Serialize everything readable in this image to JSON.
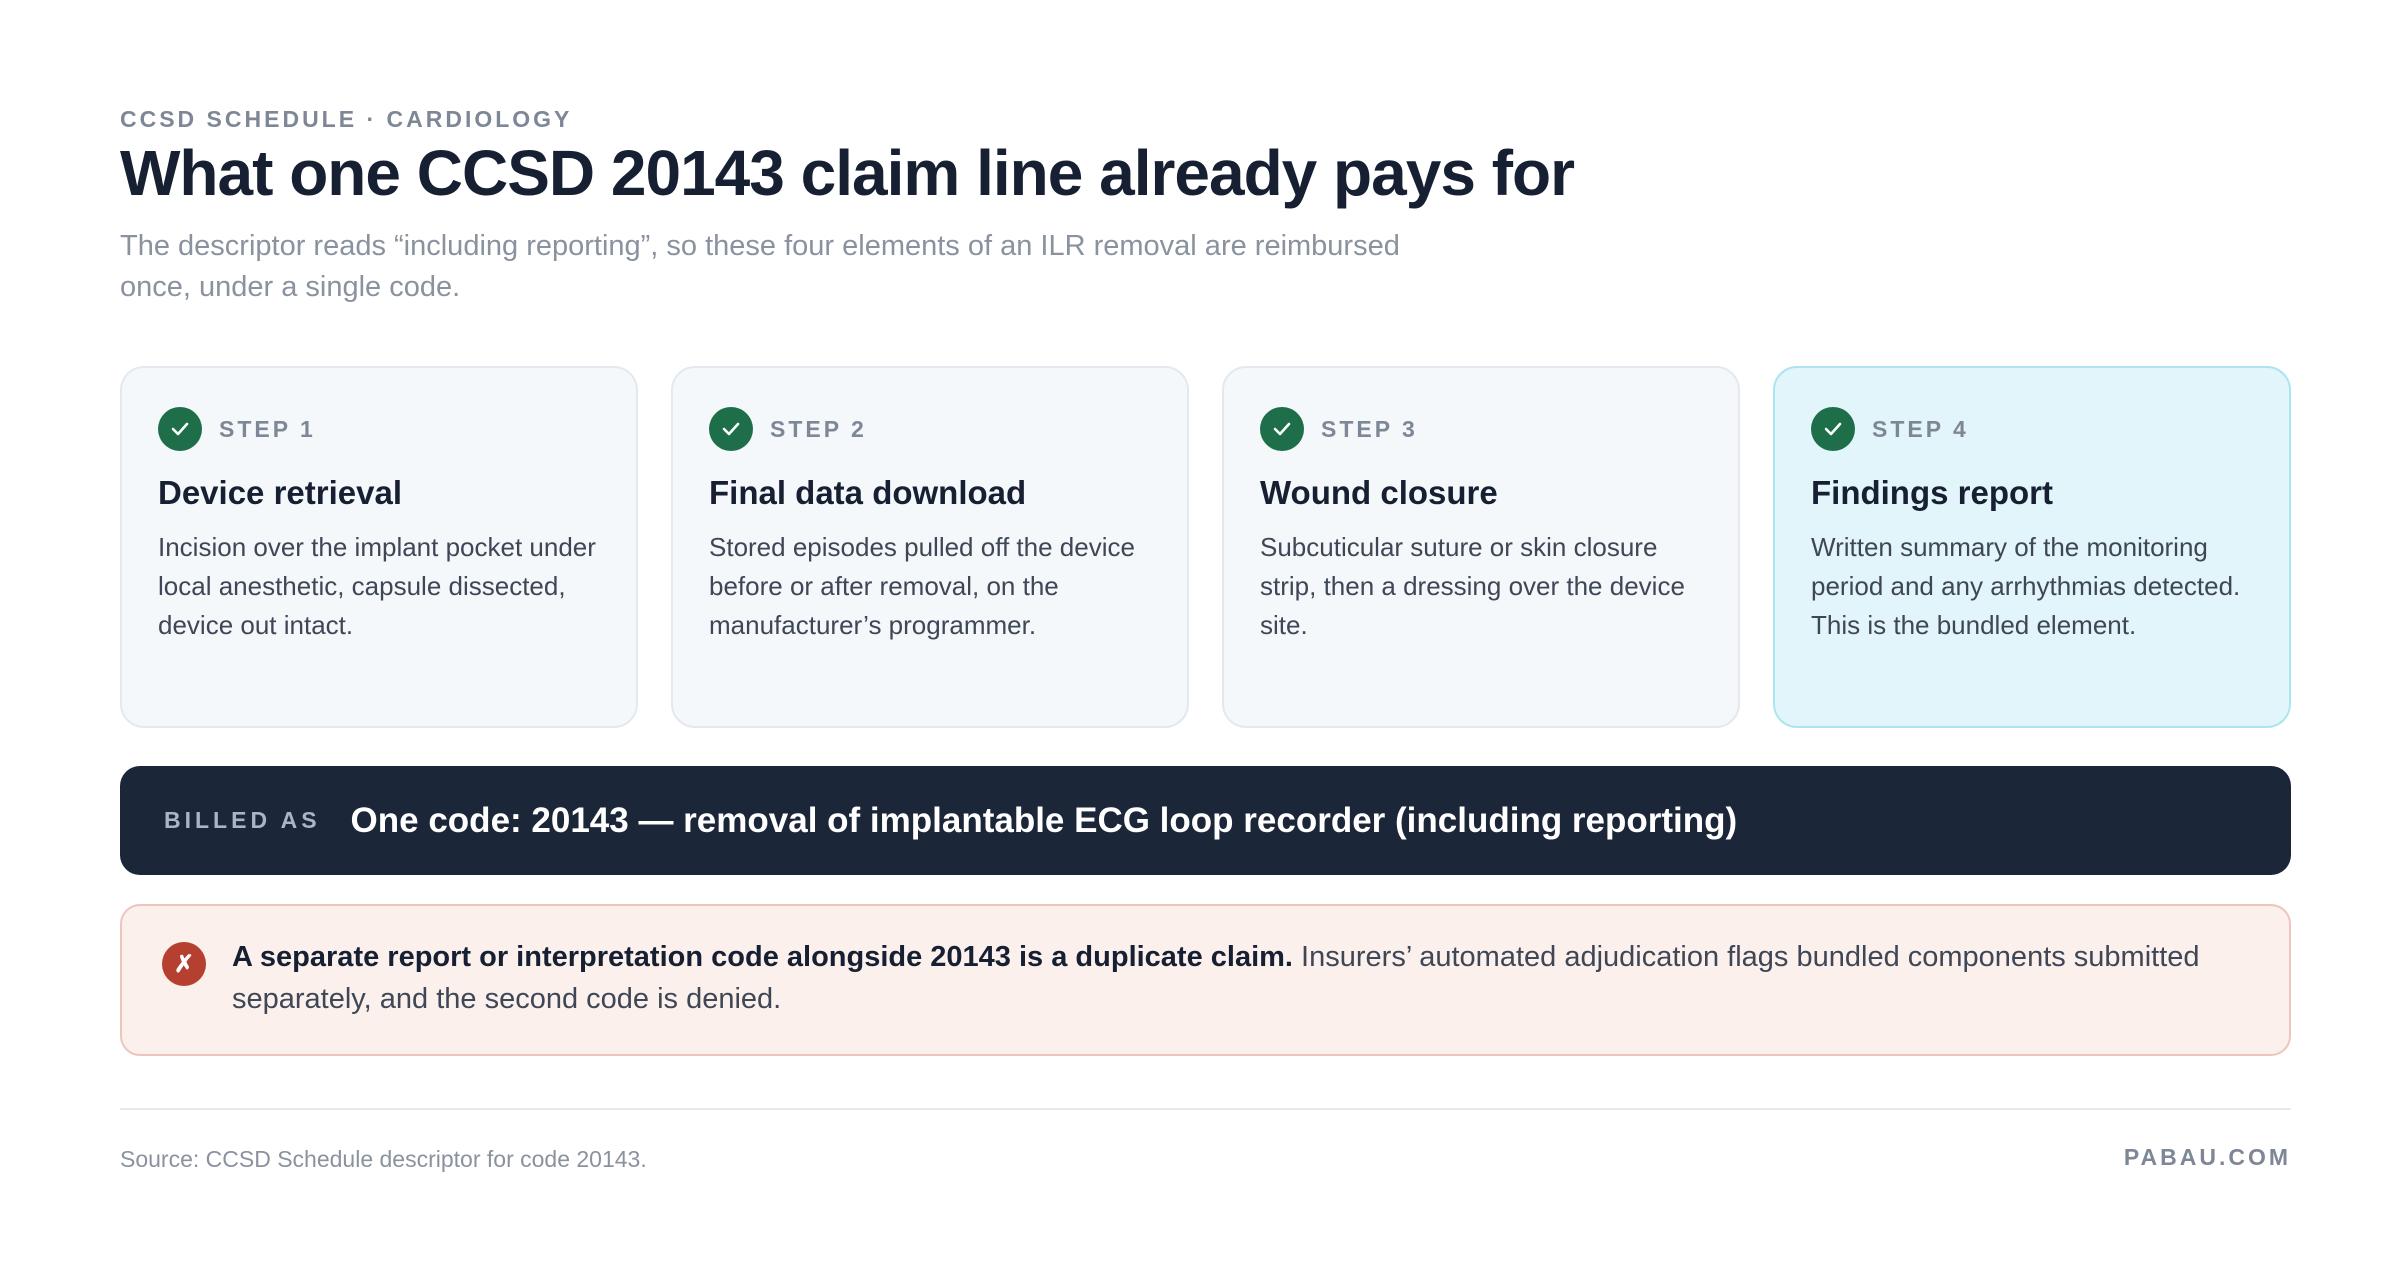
{
  "header": {
    "eyebrow": "CCSD SCHEDULE · CARDIOLOGY",
    "title": "What one CCSD 20143 claim line already pays for",
    "subtitle": "The descriptor reads “including reporting”, so these four elements of an ILR removal are reimbursed once, under a single code."
  },
  "steps": [
    {
      "label": "STEP 1",
      "title": "Device retrieval",
      "description": "Incision over the implant pocket under local anesthetic, capsule dissected, device out intact.",
      "icon": "check-circle-icon"
    },
    {
      "label": "STEP 2",
      "title": "Final data download",
      "description": "Stored episodes pulled off the device before or after removal, on the manufacturer’s programmer.",
      "icon": "check-circle-icon"
    },
    {
      "label": "STEP 3",
      "title": "Wound closure",
      "description": "Subcuticular suture or skin closure strip, then a dressing over the device site.",
      "icon": "check-circle-icon"
    },
    {
      "label": "STEP 4",
      "title": "Findings report",
      "description": "Written summary of the monitoring period and any arrhythmias detected. This is the bundled element.",
      "icon": "check-circle-icon",
      "highlighted": true
    }
  ],
  "billed": {
    "label": "BILLED AS",
    "text": "One code: 20143 — removal of implantable ECG loop recorder (including reporting)"
  },
  "warning": {
    "icon": "x-circle-icon",
    "icon_glyph": "✗",
    "strong": "A separate report or interpretation code alongside 20143 is a duplicate claim.",
    "text": " Insurers’ automated adjudication flags bundled components submitted separately, and the second code is denied."
  },
  "footer": {
    "source": "Source: CCSD Schedule descriptor for code 20143.",
    "brand": "PABAU.COM"
  },
  "colors": {
    "ink": "#172033",
    "check_green": "#1e6e4a",
    "card_bg": "#f4f8fb",
    "highlight_bg": "#e2f5fa",
    "billed_bg": "#1c2639",
    "warning_bg": "#fbf0ec",
    "warning_icon": "#b5402f"
  }
}
